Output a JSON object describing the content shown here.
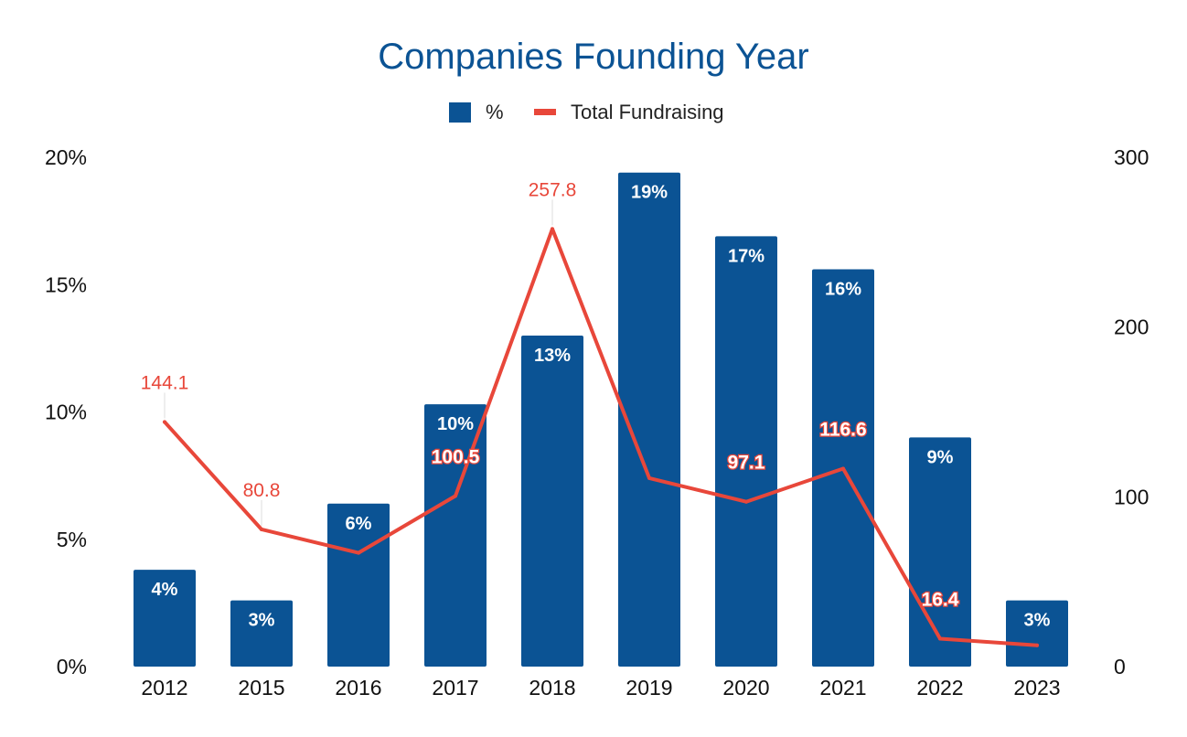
{
  "chart_data": {
    "type": "bar",
    "title": "Companies Founding Year",
    "categories": [
      "2012",
      "2015",
      "2016",
      "2017",
      "2018",
      "2019",
      "2020",
      "2021",
      "2022",
      "2023"
    ],
    "series": [
      {
        "name": "%",
        "kind": "bar",
        "axis": "left",
        "color": "#0b5394",
        "values": [
          3.8,
          2.6,
          6.4,
          10.3,
          13.0,
          19.4,
          16.9,
          15.6,
          9.0,
          2.6
        ],
        "labels": [
          "4%",
          "3%",
          "6%",
          "10%",
          "13%",
          "19%",
          "17%",
          "16%",
          "9%",
          "3%"
        ]
      },
      {
        "name": "Total Fundraising",
        "kind": "line",
        "axis": "right",
        "color": "#e8473a",
        "values": [
          144.1,
          80.8,
          67,
          100.5,
          257.8,
          111,
          97.1,
          116.6,
          16.4,
          12.5
        ],
        "labels": [
          "144.1",
          "80.8",
          "",
          "100.5",
          "257.8",
          "",
          "97.1",
          "116.6",
          "16.4",
          ""
        ]
      }
    ],
    "y_left": {
      "min": 0,
      "max": 20,
      "ticks": [
        0,
        5,
        10,
        15,
        20
      ],
      "tick_labels": [
        "0%",
        "5%",
        "10%",
        "15%",
        "20%"
      ]
    },
    "y_right": {
      "min": 0,
      "max": 300,
      "ticks": [
        0,
        100,
        200,
        300
      ],
      "tick_labels": [
        "0",
        "100",
        "200",
        "300"
      ]
    },
    "legend": {
      "position": "top-center",
      "entries": [
        "%",
        "Total Fundraising"
      ]
    },
    "grid": false
  }
}
